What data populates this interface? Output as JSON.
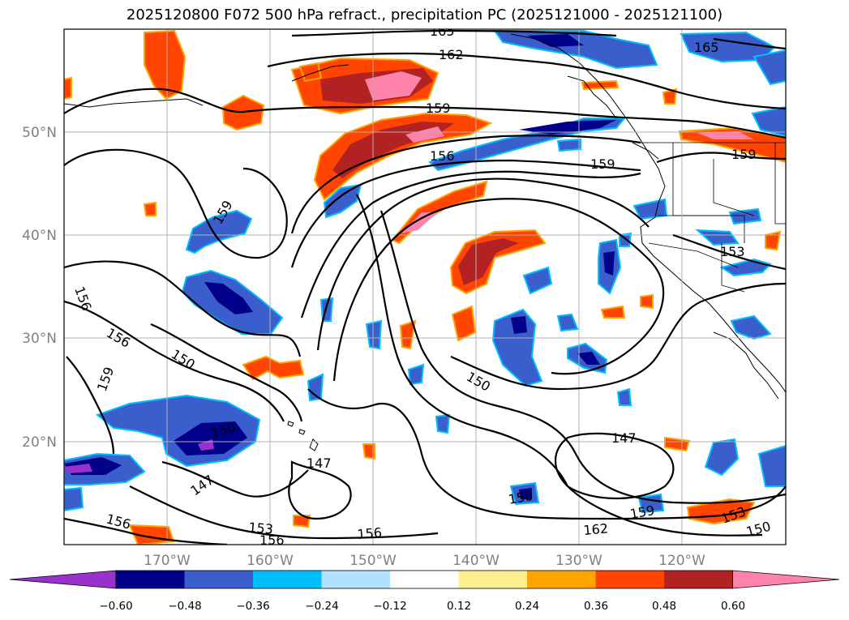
{
  "title": "2025120800 F072 500 hPa refract., precipitation PC (2025121000 - 2025121100)",
  "lat_labels": [
    "50°N",
    "40°N",
    "30°N",
    "20°N"
  ],
  "lon_labels": [
    "170°W",
    "160°W",
    "150°W",
    "140°W",
    "130°W",
    "120°W"
  ],
  "colorbar": {
    "colors": [
      "#9932cc",
      "#00008b",
      "#3a5fcd",
      "#00bfff",
      "#b0e2ff",
      "#ffffff",
      "#fff08f",
      "#ffa500",
      "#ff4500",
      "#b22222",
      "#ff82ab"
    ],
    "ticks": [
      "−0.60",
      "−0.48",
      "−0.36",
      "−0.24",
      "−0.12",
      "0.12",
      "0.24",
      "0.36",
      "0.48",
      "0.60"
    ]
  },
  "contour_labels": [
    "165",
    "162",
    "165",
    "159",
    "156",
    "159",
    "159",
    "159",
    "153",
    "156",
    "156",
    "150",
    "159",
    "150",
    "150",
    "147",
    "147",
    "147",
    "150",
    "159",
    "162",
    "153",
    "150",
    "153",
    "156",
    "156",
    "156"
  ]
}
